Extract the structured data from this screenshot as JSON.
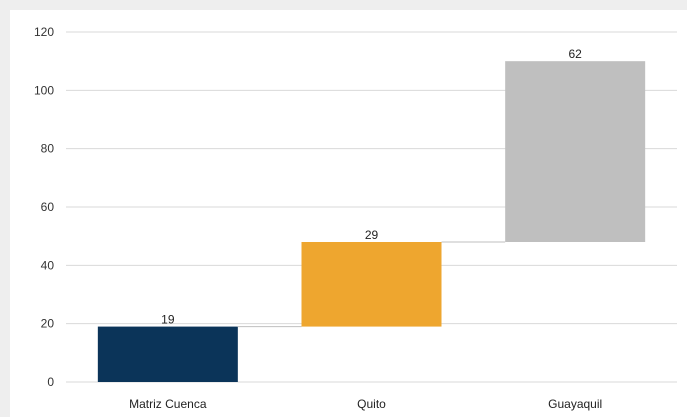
{
  "chart_data": {
    "type": "waterfall",
    "categories": [
      "Matriz Cuenca",
      "Quito",
      "Guayaquil"
    ],
    "values": [
      19,
      29,
      62
    ],
    "bars": [
      {
        "category": "Matriz Cuenca",
        "start": 0,
        "end": 19,
        "label": "19",
        "color": "#0b3459"
      },
      {
        "category": "Quito",
        "start": 19,
        "end": 48,
        "label": "29",
        "color": "#eea62f"
      },
      {
        "category": "Guayaquil",
        "start": 48,
        "end": 110,
        "label": "62",
        "color": "#bfbfbf"
      }
    ],
    "ylim": [
      0,
      120
    ],
    "yticks": [
      "0",
      "20",
      "40",
      "60",
      "80",
      "100",
      "120"
    ],
    "grid": true,
    "legend": "none",
    "title": "",
    "xlabel": "",
    "ylabel": ""
  }
}
